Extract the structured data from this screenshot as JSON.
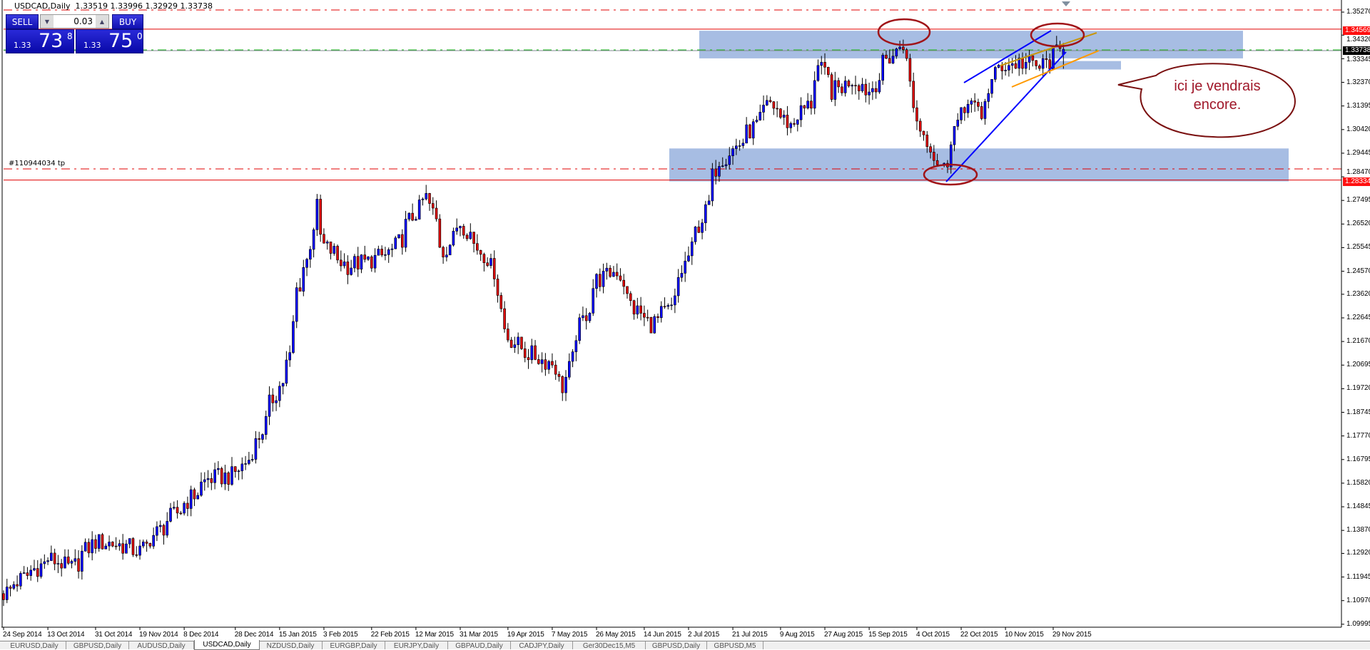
{
  "header": {
    "title": "USDCAD,Daily",
    "ohlc": "1.33519 1.33996 1.32929 1.33738"
  },
  "trade_panel": {
    "sell_label": "SELL",
    "buy_label": "BUY",
    "lot": "0.03",
    "sell": {
      "prefix": "1.33",
      "big": "73",
      "sup": "8"
    },
    "buy": {
      "prefix": "1.33",
      "big": "75",
      "sup": "0"
    }
  },
  "order_label": "#110944034 tp",
  "annotation": {
    "line1": "ici je vendrais",
    "line2": "encore."
  },
  "price_labels": {
    "current": "1.33738",
    "upper_red": "1.34569",
    "lower_red": "1.28334"
  },
  "colors": {
    "bull": "#0000ff",
    "bear": "#e00000",
    "zone": "#a7bde3",
    "red_line": "#e00000",
    "ellipse": "#a01418",
    "callout_text": "#a0182a"
  },
  "tabs": [
    {
      "label": "EURUSD,Daily"
    },
    {
      "label": "GBPUSD,Daily"
    },
    {
      "label": "AUDUSD,Daily"
    },
    {
      "label": "USDCAD,Daily",
      "active": true
    },
    {
      "label": "NZDUSD,Daily"
    },
    {
      "label": "EURGBP,Daily"
    },
    {
      "label": "EURJPY,Daily"
    },
    {
      "label": "GBPAUD,Daily"
    },
    {
      "label": "CADJPY,Daily"
    },
    {
      "label": "Ger30Dec15,M5"
    },
    {
      "label": "GBPUSD,Daily"
    },
    {
      "label": "GBPUSD,M5"
    }
  ],
  "chart_data": {
    "type": "candlestick",
    "symbol": "USDCAD",
    "timeframe": "Daily",
    "ylim": [
      1.09995,
      1.3527
    ],
    "y_ticks": [
      "1.35270",
      "1.34320",
      "1.33345",
      "1.32370",
      "1.31395",
      "1.30420",
      "1.29445",
      "1.28470",
      "1.27495",
      "1.26520",
      "1.25545",
      "1.24570",
      "1.23620",
      "1.22645",
      "1.21670",
      "1.20695",
      "1.19720",
      "1.18745",
      "1.17770",
      "1.16795",
      "1.15820",
      "1.14845",
      "1.13870",
      "1.12920",
      "1.11945",
      "1.10970",
      "1.09995"
    ],
    "x_ticks": [
      "24 Sep 2014",
      "13 Oct 2014",
      "31 Oct 2014",
      "19 Nov 2014",
      "8 Dec 2014",
      "28 Dec 2014",
      "15 Jan 2015",
      "3 Feb 2015",
      "22 Feb 2015",
      "12 Mar 2015",
      "31 Mar 2015",
      "19 Apr 2015",
      "7 May 2015",
      "26 May 2015",
      "14 Jun 2015",
      "2 Jul 2015",
      "21 Jul 2015",
      "9 Aug 2015",
      "27 Aug 2015",
      "15 Sep 2015",
      "4 Oct 2015",
      "22 Oct 2015",
      "10 Nov 2015",
      "29 Nov 2015"
    ],
    "x_tick_dates": [
      "2014-09-24",
      "2014-10-13",
      "2014-10-31",
      "2014-11-19",
      "2014-12-08",
      "2014-12-28",
      "2015-01-15",
      "2015-02-03",
      "2015-02-22",
      "2015-03-12",
      "2015-03-31",
      "2015-04-19",
      "2015-05-07",
      "2015-05-26",
      "2015-06-14",
      "2015-07-02",
      "2015-07-21",
      "2015-08-09",
      "2015-08-27",
      "2015-09-15",
      "2015-10-04",
      "2015-10-22",
      "2015-11-10",
      "2015-11-29"
    ],
    "close_trend": [
      [
        "2014-09-24",
        1.1126
      ],
      [
        "2014-10-03",
        1.12
      ],
      [
        "2014-10-13",
        1.127
      ],
      [
        "2014-10-22",
        1.123
      ],
      [
        "2014-10-31",
        1.134
      ],
      [
        "2014-11-10",
        1.133
      ],
      [
        "2014-11-19",
        1.13
      ],
      [
        "2014-11-28",
        1.14
      ],
      [
        "2014-12-08",
        1.15
      ],
      [
        "2014-12-17",
        1.16
      ],
      [
        "2014-12-28",
        1.1614
      ],
      [
        "2015-01-05",
        1.172
      ],
      [
        "2015-01-10",
        1.186
      ],
      [
        "2015-01-15",
        1.198
      ],
      [
        "2015-01-20",
        1.21
      ],
      [
        "2015-01-22",
        1.238
      ],
      [
        "2015-01-27",
        1.25
      ],
      [
        "2015-01-30",
        1.272
      ],
      [
        "2015-02-03",
        1.256
      ],
      [
        "2015-02-12",
        1.248
      ],
      [
        "2015-02-22",
        1.25
      ],
      [
        "2015-03-03",
        1.254
      ],
      [
        "2015-03-12",
        1.27
      ],
      [
        "2015-03-17",
        1.276
      ],
      [
        "2015-03-24",
        1.254
      ],
      [
        "2015-03-31",
        1.266
      ],
      [
        "2015-04-08",
        1.254
      ],
      [
        "2015-04-14",
        1.246
      ],
      [
        "2015-04-17",
        1.222
      ],
      [
        "2015-04-24",
        1.214
      ],
      [
        "2015-05-01",
        1.21
      ],
      [
        "2015-05-07",
        1.208
      ],
      [
        "2015-05-12",
        1.198
      ],
      [
        "2015-05-18",
        1.22
      ],
      [
        "2015-05-26",
        1.242
      ],
      [
        "2015-06-03",
        1.246
      ],
      [
        "2015-06-10",
        1.23
      ],
      [
        "2015-06-17",
        1.224
      ],
      [
        "2015-06-25",
        1.23
      ],
      [
        "2015-07-02",
        1.252
      ],
      [
        "2015-07-09",
        1.27
      ],
      [
        "2015-07-15",
        1.292
      ],
      [
        "2015-07-21",
        1.296
      ],
      [
        "2015-07-30",
        1.306
      ],
      [
        "2015-08-05",
        1.315
      ],
      [
        "2015-08-13",
        1.306
      ],
      [
        "2015-08-21",
        1.315
      ],
      [
        "2015-08-25",
        1.33
      ],
      [
        "2015-08-31",
        1.32
      ],
      [
        "2015-09-08",
        1.325
      ],
      [
        "2015-09-15",
        1.32
      ],
      [
        "2015-09-22",
        1.333
      ],
      [
        "2015-09-29",
        1.34
      ],
      [
        "2015-10-02",
        1.315
      ],
      [
        "2015-10-08",
        1.3
      ],
      [
        "2015-10-15",
        1.288
      ],
      [
        "2015-10-20",
        1.305
      ],
      [
        "2015-10-26",
        1.318
      ],
      [
        "2015-10-30",
        1.308
      ],
      [
        "2015-11-06",
        1.33
      ],
      [
        "2015-11-16",
        1.332
      ],
      [
        "2015-11-24",
        1.33
      ],
      [
        "2015-12-03",
        1.33738
      ]
    ],
    "last_bar": {
      "open": 1.33519,
      "high": 1.33996,
      "low": 1.32929,
      "close": 1.33738
    },
    "levels": {
      "resistance_line": 1.34569,
      "support_line": 1.28334,
      "take_profit": 1.2878,
      "upper_dashdot": 1.3535
    },
    "zones": [
      [
        1.3336,
        1.345
      ],
      [
        1.2828,
        1.2964
      ],
      [
        1.329,
        1.3325
      ]
    ],
    "grid": false
  }
}
